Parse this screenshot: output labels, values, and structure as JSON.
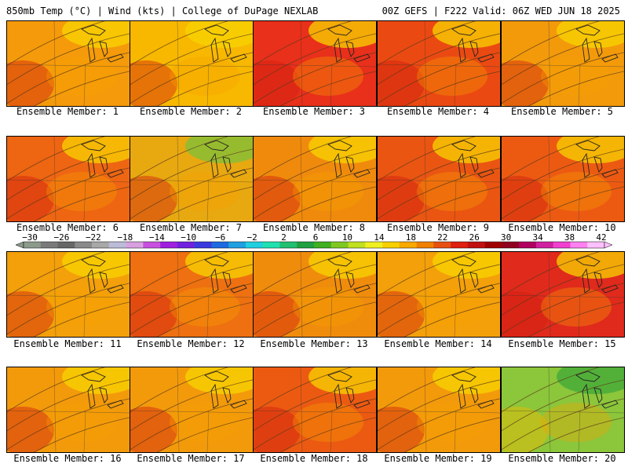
{
  "header": {
    "title_left": "850mb Temp (°C) | Wind (kts) | College of DuPage NEXLAB",
    "title_right": "00Z GEFS | F222 Valid: 06Z WED JUN 18 2025"
  },
  "member_label_prefix": "Ensemble Member: ",
  "members": [
    {
      "id": 1,
      "label": "Ensemble Member: 1",
      "dominant": "#f59a0a"
    },
    {
      "id": 2,
      "label": "Ensemble Member: 2",
      "dominant": "#f8b800"
    },
    {
      "id": 3,
      "label": "Ensemble Member: 3",
      "dominant": "#e8301a"
    },
    {
      "id": 4,
      "label": "Ensemble Member: 4",
      "dominant": "#ea4a12"
    },
    {
      "id": 5,
      "label": "Ensemble Member: 5",
      "dominant": "#f39a0b"
    },
    {
      "id": 6,
      "label": "Ensemble Member: 6",
      "dominant": "#ee6512"
    },
    {
      "id": 7,
      "label": "Ensemble Member: 7",
      "dominant": "#e8a810"
    },
    {
      "id": 8,
      "label": "Ensemble Member: 8",
      "dominant": "#f08a0c"
    },
    {
      "id": 9,
      "label": "Ensemble Member: 9",
      "dominant": "#ea5512"
    },
    {
      "id": 10,
      "label": "Ensemble Member: 10",
      "dominant": "#ec5a12"
    },
    {
      "id": 11,
      "label": "Ensemble Member: 11",
      "dominant": "#f3a00a"
    },
    {
      "id": 12,
      "label": "Ensemble Member: 12",
      "dominant": "#ee7010"
    },
    {
      "id": 13,
      "label": "Ensemble Member: 13",
      "dominant": "#f08c0c"
    },
    {
      "id": 14,
      "label": "Ensemble Member: 14",
      "dominant": "#f3a00a"
    },
    {
      "id": 15,
      "label": "Ensemble Member: 15",
      "dominant": "#e02a1c"
    },
    {
      "id": 16,
      "label": "Ensemble Member: 16",
      "dominant": "#f39a0b"
    },
    {
      "id": 17,
      "label": "Ensemble Member: 17",
      "dominant": "#f39a0b"
    },
    {
      "id": 18,
      "label": "Ensemble Member: 18",
      "dominant": "#ec5a12"
    },
    {
      "id": 19,
      "label": "Ensemble Member: 19",
      "dominant": "#f39a0b"
    },
    {
      "id": 20,
      "label": "Ensemble Member: 20",
      "dominant": "#8cc63a"
    }
  ],
  "legend": {
    "tick_labels": [
      "-30",
      "-26",
      "-22",
      "-18",
      "-14",
      "-10",
      "-6",
      "-2",
      "2",
      "6",
      "10",
      "14",
      "18",
      "22",
      "26",
      "30",
      "34",
      "38",
      "42"
    ],
    "colors": [
      "#8c9b8c",
      "#7a7a7a",
      "#666666",
      "#8a8a8a",
      "#a8a8a8",
      "#bcbcd8",
      "#d8a0e0",
      "#c850e0",
      "#a020e0",
      "#7020e0",
      "#3a3ae0",
      "#1e6ae0",
      "#20a0e0",
      "#20d0e0",
      "#20e0b0",
      "#20c070",
      "#20a040",
      "#40b020",
      "#80c820",
      "#c0e020",
      "#f0f020",
      "#f8d000",
      "#f8a800",
      "#f08000",
      "#e85010",
      "#e02010",
      "#c01010",
      "#a00000",
      "#900020",
      "#b00060",
      "#d020a0",
      "#f040d0",
      "#ff80f0",
      "#ffc0ff"
    ]
  }
}
